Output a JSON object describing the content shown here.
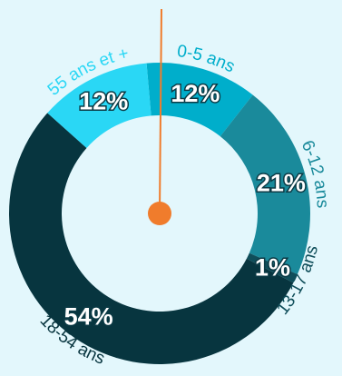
{
  "chart_data": {
    "type": "pie",
    "donut": true,
    "categories": [
      "0-5 ans",
      "6-12 ans",
      "13-17 ans",
      "18-54 ans",
      "55 ans et +"
    ],
    "values": [
      12,
      21,
      1,
      54,
      12
    ],
    "value_labels": [
      "12%",
      "21%",
      "1%",
      "54%",
      "12%"
    ],
    "colors": [
      "#00aecb",
      "#1a8a9b",
      "#0f4e5a",
      "#07353f",
      "#2ad7f5"
    ],
    "label_colors": [
      "#00aecb",
      "#1a8a9b",
      "#0f4e5a",
      "#07353f",
      "#2ad7f5"
    ],
    "needle_color": "#f07c2c",
    "background": "#e3f7fc"
  }
}
